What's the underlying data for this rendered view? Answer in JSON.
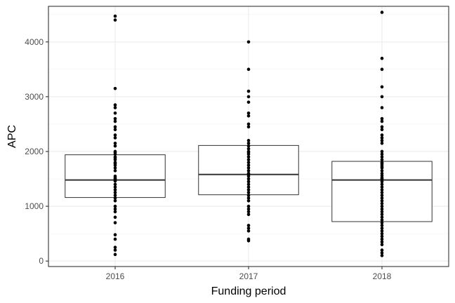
{
  "chart_data": {
    "type": "boxplot",
    "title": "",
    "xlabel": "Funding period",
    "ylabel": "APC",
    "categories": [
      "2016",
      "2017",
      "2018"
    ],
    "ylim": [
      -100,
      4650
    ],
    "yticks": [
      0,
      1000,
      2000,
      3000,
      4000
    ],
    "ytick_labels": [
      "0",
      "1000",
      "2000",
      "3000",
      "4000"
    ],
    "grid": true,
    "legend": "none",
    "boxes": [
      {
        "category": "2016",
        "q1": 1160,
        "median": 1480,
        "q3": 1940
      },
      {
        "category": "2017",
        "q1": 1210,
        "median": 1580,
        "q3": 2110
      },
      {
        "category": "2018",
        "q1": 720,
        "median": 1480,
        "q3": 1820
      }
    ],
    "points": [
      {
        "category": "2016",
        "values": [
          4470,
          4400,
          3150,
          2850,
          2800,
          2700,
          2600,
          2550,
          2450,
          2400,
          2300,
          2250,
          2150,
          2100,
          2000,
          1980,
          1950,
          1900,
          1880,
          1850,
          1800,
          1780,
          1750,
          1700,
          1650,
          1550,
          1520,
          1500,
          1480,
          1460,
          1400,
          1350,
          1300,
          1250,
          1200,
          1150,
          1100,
          1000,
          950,
          900,
          800,
          700,
          480,
          400,
          250,
          200,
          120
        ]
      },
      {
        "category": "2017",
        "values": [
          4000,
          3500,
          3100,
          3000,
          2900,
          2700,
          2650,
          2500,
          2450,
          2200,
          2150,
          2100,
          2050,
          2000,
          1980,
          1950,
          1900,
          1850,
          1800,
          1750,
          1700,
          1650,
          1600,
          1580,
          1550,
          1500,
          1450,
          1400,
          1350,
          1300,
          1250,
          1200,
          1150,
          1100,
          1000,
          950,
          900,
          850,
          650,
          600,
          550,
          400,
          370
        ]
      },
      {
        "category": "2018",
        "values": [
          4540,
          3700,
          3500,
          3180,
          3000,
          2800,
          2600,
          2550,
          2450,
          2400,
          2300,
          2250,
          2200,
          2150,
          2000,
          1950,
          1900,
          1850,
          1800,
          1780,
          1750,
          1720,
          1700,
          1650,
          1600,
          1560,
          1520,
          1500,
          1480,
          1450,
          1400,
          1350,
          1300,
          1250,
          1200,
          1150,
          1100,
          1050,
          1000,
          950,
          900,
          850,
          800,
          750,
          700,
          650,
          600,
          550,
          500,
          450,
          400,
          350,
          300,
          200,
          150,
          100
        ]
      }
    ]
  }
}
